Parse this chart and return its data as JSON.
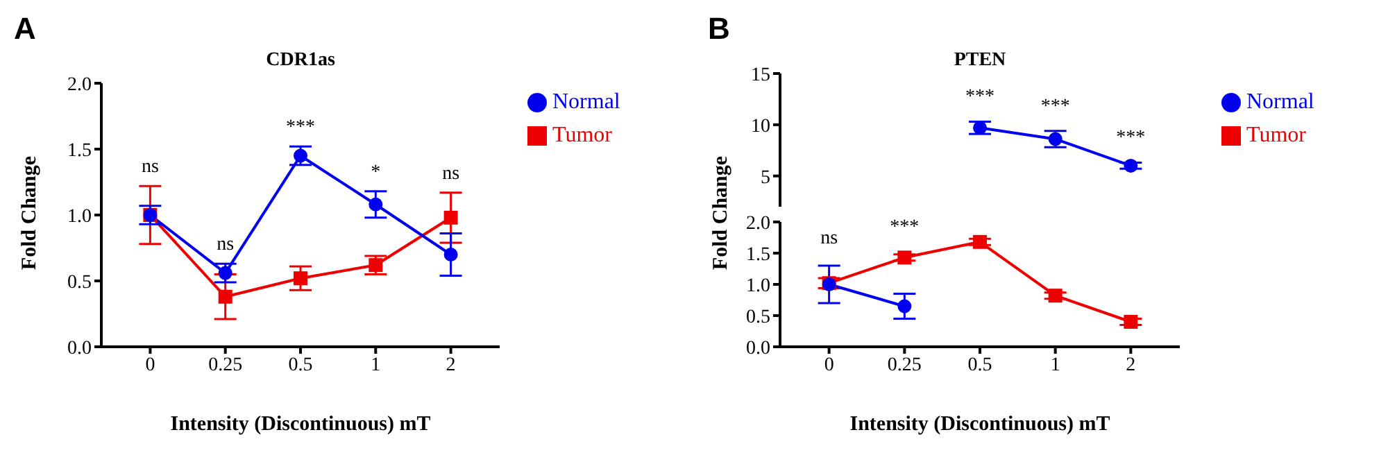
{
  "chart_data": [
    {
      "type": "line",
      "title": "CDR1as",
      "xlabel": "Intensity (Discontinuous) mT",
      "ylabel": "Fold Change",
      "categories": [
        "0",
        "0.25",
        "0.5",
        "1",
        "2"
      ],
      "series": [
        {
          "name": "Normal",
          "color": "#0000ee",
          "marker": "circle",
          "values": [
            1.0,
            0.56,
            1.45,
            1.08,
            0.7
          ],
          "errors": [
            0.07,
            0.07,
            0.07,
            0.1,
            0.16
          ]
        },
        {
          "name": "Tumor",
          "color": "#ee0000",
          "marker": "square",
          "values": [
            1.0,
            0.38,
            0.52,
            0.62,
            0.98
          ],
          "errors": [
            0.22,
            0.17,
            0.09,
            0.07,
            0.19
          ]
        }
      ],
      "ylim": [
        0,
        2
      ],
      "yticks": [
        {
          "value": 0,
          "label": "0.0"
        },
        {
          "value": 0.5,
          "label": "0.5"
        },
        {
          "value": 1,
          "label": "1.0"
        },
        {
          "value": 1.5,
          "label": "1.5"
        },
        {
          "value": 2,
          "label": "2.0"
        }
      ],
      "legend": "right",
      "annotations": [
        "A",
        "ns",
        "ns",
        "***",
        "*",
        "ns"
      ]
    },
    {
      "type": "line",
      "title": "PTEN",
      "categories": [
        "0",
        "0.25",
        "0.5",
        "1",
        "2"
      ],
      "tick_labels": "y",
      "series": [
        {
          "name": "Normal",
          "color": "#0000ee",
          "marker": "circle",
          "values": [
            null,
            null,
            9.7,
            8.6,
            6.0
          ],
          "errors": [
            null,
            null,
            0.6,
            0.8,
            0.3
          ]
        },
        {
          "name": "Tumor",
          "color": "#ee0000",
          "marker": "square",
          "values": [
            null,
            null,
            null,
            null,
            null
          ]
        }
      ],
      "ylim": [
        2,
        15
      ],
      "yticks": [
        5,
        10,
        15
      ],
      "legend": "right",
      "annotations": [
        "B",
        "***",
        "***",
        "***"
      ]
    },
    {
      "type": "line",
      "xlabel": "Intensity (Discontinuous) mT",
      "ylabel": "Fold Change",
      "categories": [
        "0",
        "0.25",
        "0.5",
        "1",
        "2"
      ],
      "series": [
        {
          "color": "#0000ee",
          "marker": "circle",
          "values": [
            1.0,
            0.65,
            null,
            null,
            null
          ],
          "errors": [
            0.3,
            0.2,
            null,
            null,
            null
          ]
        },
        {
          "color": "#ee0000",
          "marker": "square",
          "values": [
            1.02,
            1.43,
            1.68,
            0.82,
            0.4
          ],
          "errors": [
            0.08,
            0.05,
            0.05,
            0.05,
            0.05
          ]
        }
      ],
      "ylim": [
        0,
        2
      ],
      "yticks": [
        {
          "value": 0,
          "label": "0.0"
        },
        {
          "value": 0.5,
          "label": "0.5"
        },
        {
          "value": 1,
          "label": "1.0"
        },
        {
          "value": 1.5,
          "label": "1.5"
        },
        {
          "value": 2,
          "label": "2.0"
        }
      ],
      "annotations": [
        "ns",
        "***"
      ]
    }
  ]
}
